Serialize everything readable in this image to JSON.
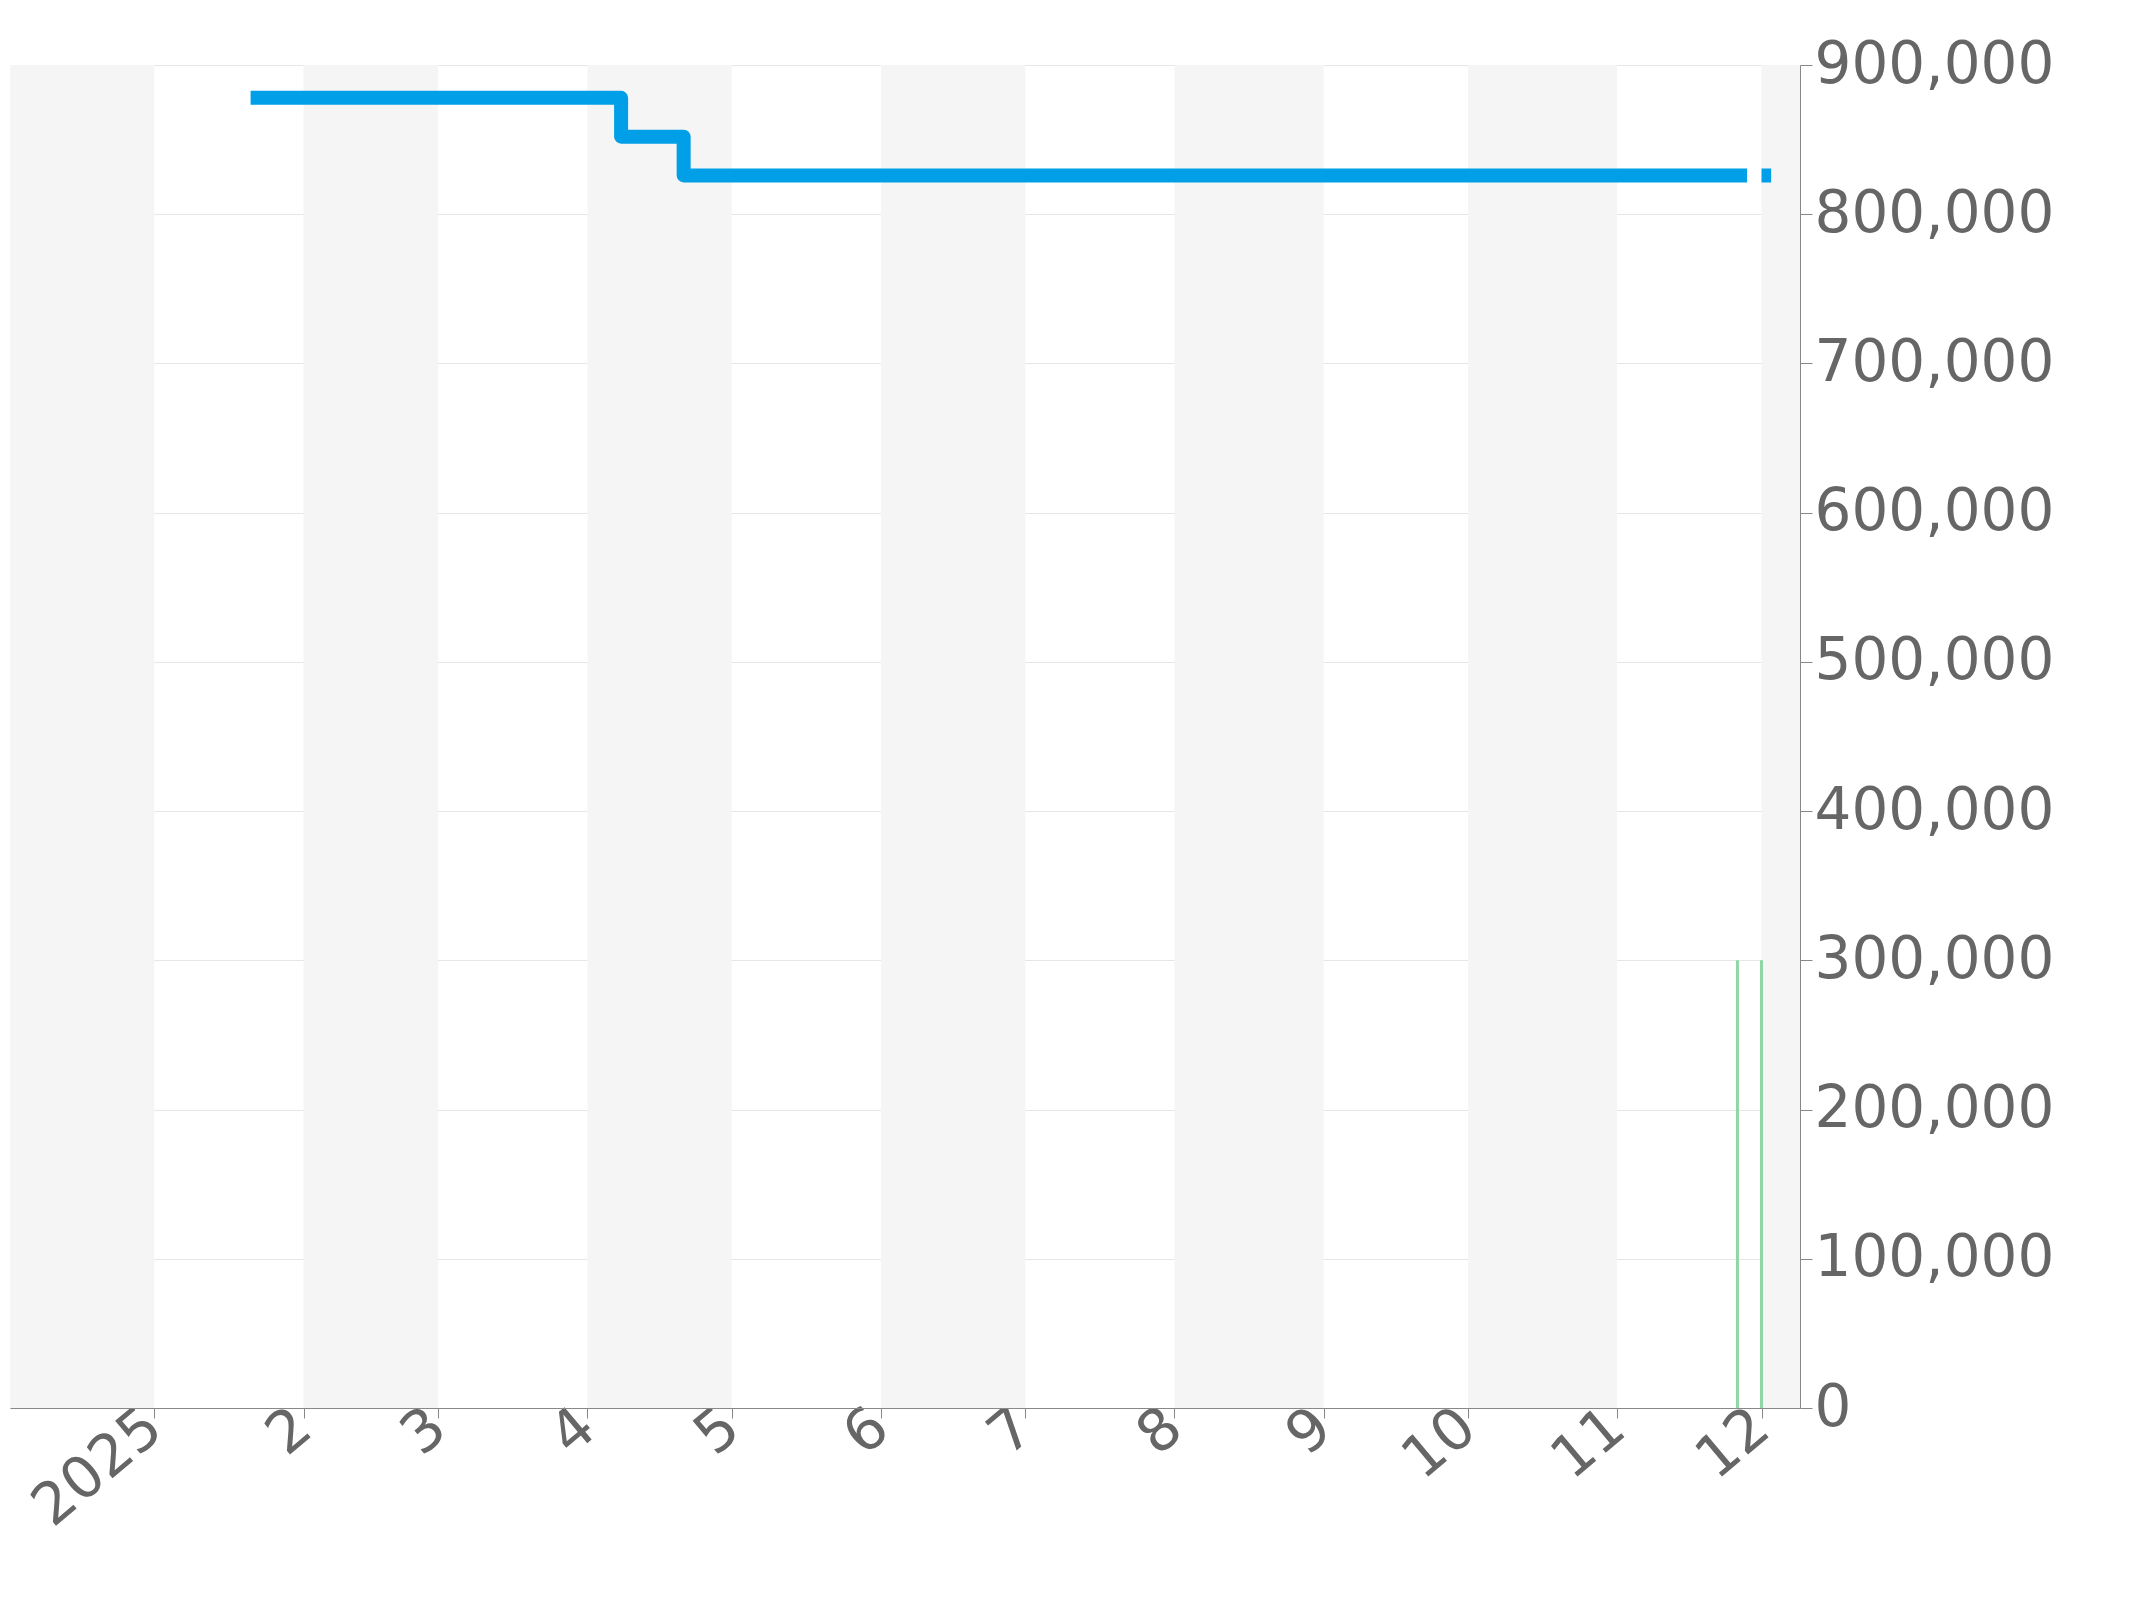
{
  "chart_data": {
    "type": "step",
    "xlim": [
      "2024-12-02",
      "2025-12-09"
    ],
    "xticks": [
      {
        "value": "2025-01-01",
        "label": "2025"
      },
      {
        "value": "2025-02-01",
        "label": "2"
      },
      {
        "value": "2025-03-01",
        "label": "3"
      },
      {
        "value": "2025-04-01",
        "label": "4"
      },
      {
        "value": "2025-05-01",
        "label": "5"
      },
      {
        "value": "2025-06-01",
        "label": "6"
      },
      {
        "value": "2025-07-01",
        "label": "7"
      },
      {
        "value": "2025-08-01",
        "label": "8"
      },
      {
        "value": "2025-09-01",
        "label": "9"
      },
      {
        "value": "2025-10-01",
        "label": "10"
      },
      {
        "value": "2025-11-01",
        "label": "11"
      },
      {
        "value": "2025-12-01",
        "label": "12"
      }
    ],
    "ylim": [
      0,
      900000
    ],
    "yticks": [
      {
        "value": 0,
        "label": "0"
      },
      {
        "value": 100000,
        "label": "100,000"
      },
      {
        "value": 200000,
        "label": "200,000"
      },
      {
        "value": 300000,
        "label": "300,000"
      },
      {
        "value": 400000,
        "label": "400,000"
      },
      {
        "value": 500000,
        "label": "500,000"
      },
      {
        "value": 600000,
        "label": "600,000"
      },
      {
        "value": 700000,
        "label": "700,000"
      },
      {
        "value": 800000,
        "label": "800,000"
      },
      {
        "value": 900000,
        "label": "900,000"
      }
    ],
    "grid": "y",
    "bands": [
      {
        "axis": "x",
        "from": "2024-12-02",
        "to": "2025-01-01",
        "color": "#f5f5f5"
      },
      {
        "axis": "x",
        "from": "2025-02-01",
        "to": "2025-03-01",
        "color": "#f5f5f5"
      },
      {
        "axis": "x",
        "from": "2025-04-01",
        "to": "2025-05-01",
        "color": "#f5f5f5"
      },
      {
        "axis": "x",
        "from": "2025-06-01",
        "to": "2025-07-01",
        "color": "#f5f5f5"
      },
      {
        "axis": "x",
        "from": "2025-08-01",
        "to": "2025-09-01",
        "color": "#f5f5f5"
      },
      {
        "axis": "x",
        "from": "2025-10-01",
        "to": "2025-11-01",
        "color": "#f5f5f5"
      },
      {
        "axis": "x",
        "from": "2025-12-01",
        "to": "2025-12-09",
        "color": "#f5f5f5"
      }
    ],
    "series": [
      {
        "type": "bar",
        "color": "#8fd6a4",
        "x": [
          "2025-11-26",
          "2025-12-01"
        ],
        "values": [
          300000,
          300000
        ]
      },
      {
        "color": "#009fe8",
        "x": [
          "2025-01-21",
          "2025-04-08",
          "2025-04-21",
          "2025-11-28",
          "2025-11-29",
          "2025-12-01",
          "2025-12-03"
        ],
        "values": [
          878000,
          852000,
          826000,
          826000,
          null,
          826000,
          826000
        ]
      }
    ]
  }
}
